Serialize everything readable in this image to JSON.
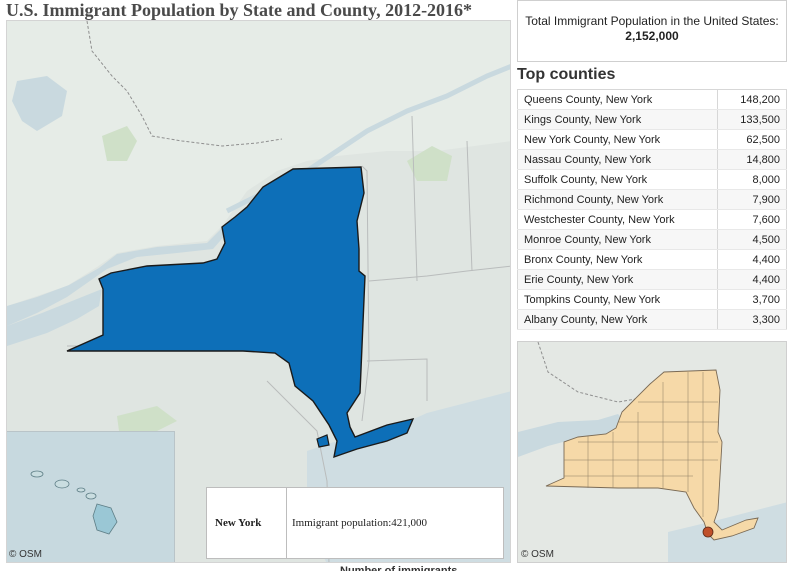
{
  "page": {
    "title": "U.S. Immigrant Population by State and County, 2012-2016*",
    "legend_caption": "Number of immigrants"
  },
  "main_map": {
    "selected_state": "New York",
    "state_fill_color": "#0d6fb8",
    "credit": "© OSM",
    "tooltip": {
      "state": "New York",
      "value_text": "Immigrant population:421,000"
    }
  },
  "total": {
    "label": "Total Immigrant Population in the United States:",
    "value": "2,152,000"
  },
  "top_counties": {
    "heading": "Top counties",
    "rows": [
      {
        "county": "Queens County, New York",
        "value": "148,200"
      },
      {
        "county": "Kings County, New York",
        "value": "133,500"
      },
      {
        "county": "New York County, New York",
        "value": "62,500"
      },
      {
        "county": "Nassau County, New York",
        "value": "14,800"
      },
      {
        "county": "Suffolk County, New York",
        "value": "8,000"
      },
      {
        "county": "Richmond County, New York",
        "value": "7,900"
      },
      {
        "county": "Westchester County, New York",
        "value": "7,600"
      },
      {
        "county": "Monroe County, New York",
        "value": "4,500"
      },
      {
        "county": "Bronx County, New York",
        "value": "4,400"
      },
      {
        "county": "Erie County, New York",
        "value": "4,400"
      },
      {
        "county": "Tompkins County, New York",
        "value": "3,700"
      },
      {
        "county": "Albany County, New York",
        "value": "3,300"
      }
    ]
  },
  "mini_map": {
    "credit": "© OSM",
    "county_fill_color": "#f6d9a8",
    "highlight_color": "#c0502a"
  }
}
